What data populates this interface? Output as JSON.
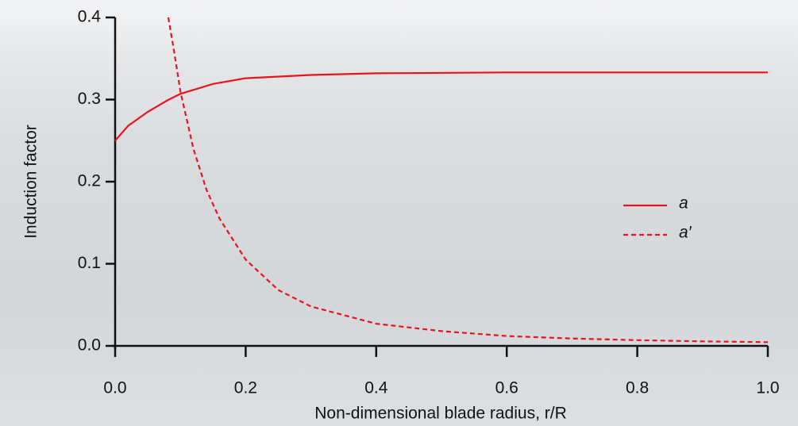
{
  "chart_data": {
    "type": "line",
    "xlabel": "Non-dimensional blade radius, r/R",
    "ylabel": "Induction factor",
    "xlim": [
      0,
      1.0
    ],
    "xticks": [
      {
        "value": 0,
        "label": "0.0"
      },
      0.2,
      0.4,
      0.6,
      0.8,
      {
        "value": 1,
        "label": "1.0"
      }
    ],
    "ylim": [
      0,
      0.4
    ],
    "yticks": [
      {
        "value": 0,
        "label": "0.0"
      },
      0.1,
      0.2,
      0.3,
      0.4
    ],
    "legend": "right",
    "series": [
      {
        "name": "a",
        "color": "#e8141c",
        "dash": false,
        "x": [
          0,
          0.02,
          0.05,
          0.08,
          0.1,
          0.15,
          0.2,
          0.3,
          0.4,
          0.6,
          0.8,
          1.0
        ],
        "values": [
          0.25,
          0.268,
          0.285,
          0.299,
          0.307,
          0.319,
          0.326,
          0.33,
          0.332,
          0.333,
          0.333,
          0.333
        ]
      },
      {
        "name": "a′",
        "color": "#e8141c",
        "dash": true,
        "x": [
          0.0815,
          0.09,
          0.1,
          0.12,
          0.14,
          0.16,
          0.2,
          0.25,
          0.3,
          0.4,
          0.5,
          0.6,
          0.7,
          0.8,
          0.9,
          1.0
        ],
        "values": [
          0.4,
          0.36,
          0.31,
          0.24,
          0.19,
          0.155,
          0.105,
          0.068,
          0.048,
          0.027,
          0.018,
          0.012,
          0.009,
          0.007,
          0.0055,
          0.0045
        ]
      }
    ]
  }
}
